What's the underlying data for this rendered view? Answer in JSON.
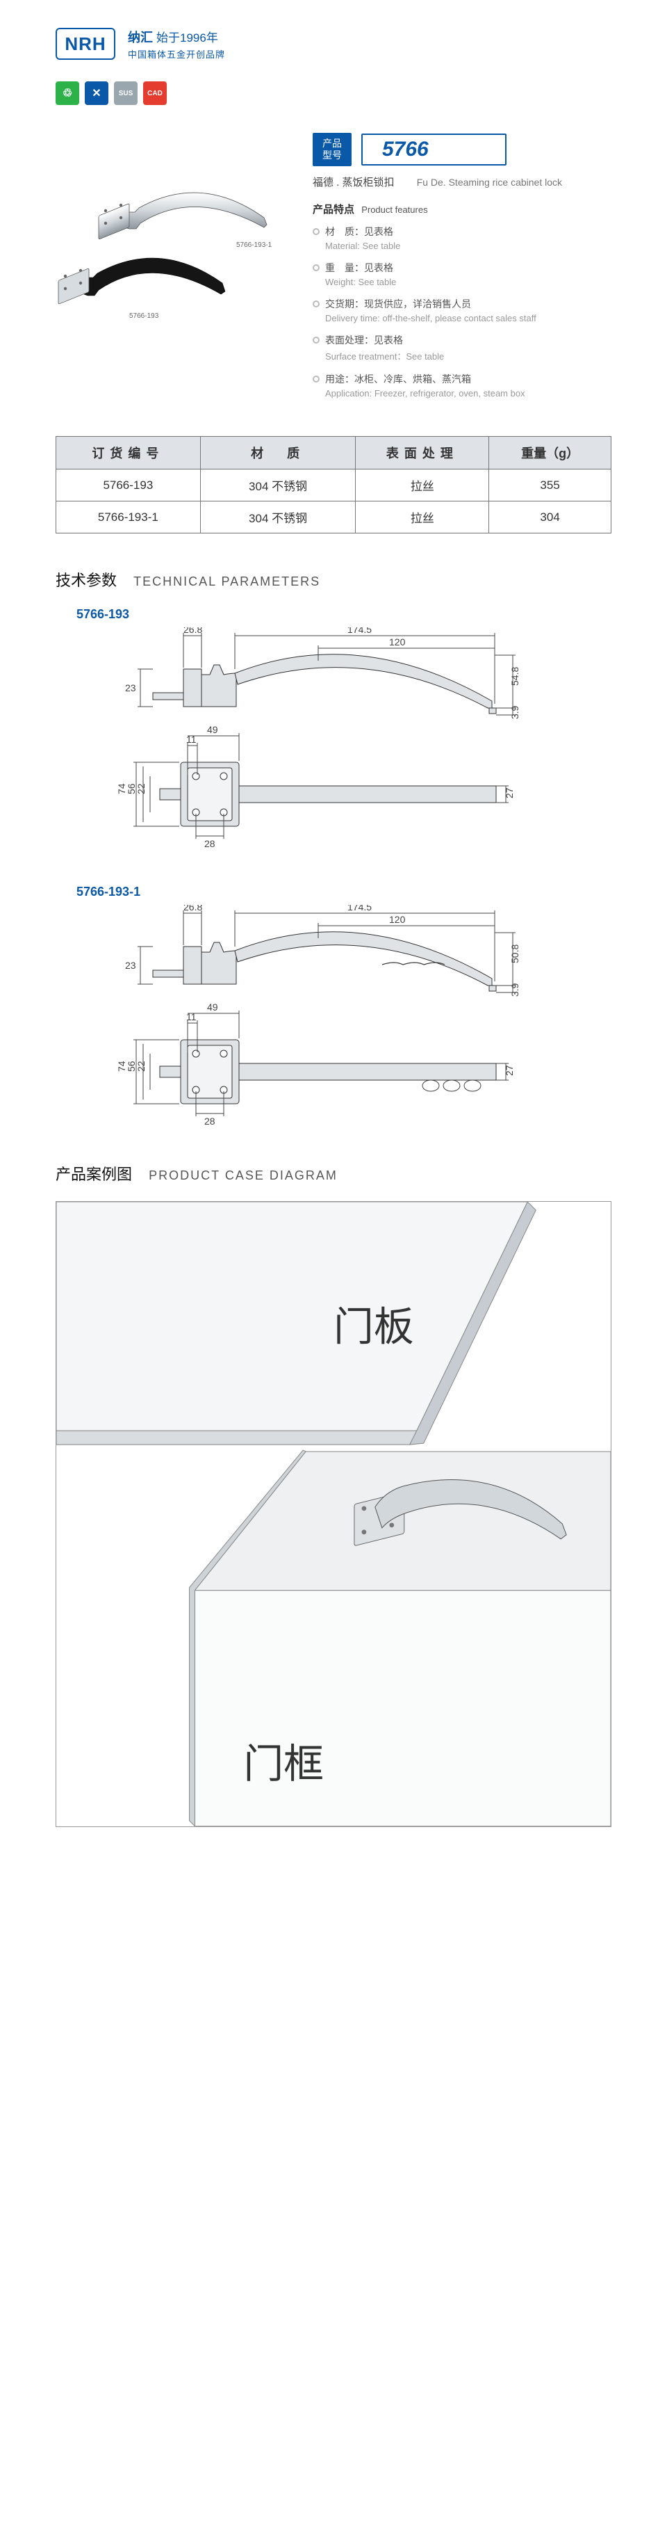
{
  "header": {
    "logo_text": "NRH",
    "brand_cn_main": "纳汇",
    "brand_cn_since": "始于1996年",
    "brand_sub": "中国箱体五金开创品牌",
    "feature_icons": [
      {
        "bg": "#2db24a",
        "glyph": "♲"
      },
      {
        "bg": "#0a58a8",
        "glyph": "✕"
      },
      {
        "bg": "#9aa6ae",
        "glyph": "SUS"
      },
      {
        "bg": "#e43c2e",
        "glyph": "CAD"
      }
    ]
  },
  "product": {
    "model_label_l1": "产品",
    "model_label_l2": "型号",
    "model_number": "5766",
    "name_cn": "福德 . 蒸饭柜锁扣",
    "name_en": "Fu De. Steaming rice cabinet lock",
    "features_heading_cn": "产品特点",
    "features_heading_en": "Product features",
    "illus_labels": {
      "a": "5766-193-1",
      "b": "5766-193"
    },
    "features": [
      {
        "cn": "材　质：见表格",
        "en": "Material: See table"
      },
      {
        "cn": "重　量：见表格",
        "en": "Weight: See table"
      },
      {
        "cn": "交货期：现货供应，详洽销售人员",
        "en": "Delivery time: off-the-shelf, please contact sales staff"
      },
      {
        "cn": "表面处理：见表格",
        "en": "Surface treatment：See table"
      },
      {
        "cn": "用途：冰柜、冷库、烘箱、蒸汽箱",
        "en": "Application: Freezer, refrigerator, oven, steam box"
      }
    ]
  },
  "table": {
    "headers": [
      "订货编号",
      "材　质",
      "表面处理",
      "重量（g）"
    ],
    "rows": [
      [
        "5766-193",
        "304 不锈钢",
        "拉丝",
        "355"
      ],
      [
        "5766-193-1",
        "304 不锈钢",
        "拉丝",
        "304"
      ]
    ],
    "col_widths": [
      "26%",
      "28%",
      "24%",
      "22%"
    ]
  },
  "tech": {
    "heading_cn": "技术参数",
    "heading_en": "TECHNICAL PARAMETERS",
    "variants": [
      {
        "label": "5766-193",
        "dims": {
          "a": "26.8",
          "b": "174.5",
          "c": "120",
          "d": "54.8",
          "e": "3.9",
          "f": "23",
          "g": "11",
          "h": "49",
          "i": "28",
          "j": "22",
          "k": "56",
          "l": "74",
          "m": "27"
        },
        "grip": "smooth"
      },
      {
        "label": "5766-193-1",
        "dims": {
          "a": "26.8",
          "b": "174.5",
          "c": "120",
          "d": "50.8",
          "e": "3.9",
          "f": "23",
          "g": "11",
          "h": "49",
          "i": "28",
          "j": "22",
          "k": "56",
          "l": "74",
          "m": "27"
        },
        "grip": "finger"
      }
    ]
  },
  "case": {
    "heading_cn": "产品案例图",
    "heading_en": "PRODUCT CASE DIAGRAM",
    "label_door_panel": "门板",
    "label_door_frame": "门框"
  }
}
